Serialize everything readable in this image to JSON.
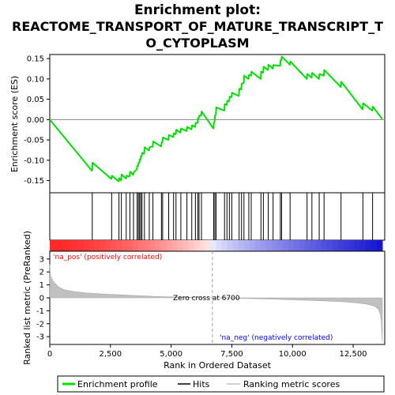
{
  "chart_data": {
    "type": "line",
    "title_line1": "Enrichment plot:",
    "title_line2": "REACTOME_TRANSPORT_OF_MATURE_TRANSCRIPT_T",
    "title_line3": "O_CYTOPLASM",
    "ylabel_top": "Enrichment score (ES)",
    "ylabel_bottom": "Ranked list metric (PreRanked)",
    "xlabel": "Rank in Ordered Dataset",
    "top_yticks": [
      "0.15",
      "0.10",
      "0.05",
      "0.00",
      "-0.05",
      "-0.10",
      "-0.15"
    ],
    "top_ytick_values": [
      0.15,
      0.1,
      0.05,
      0.0,
      -0.05,
      -0.1,
      -0.15
    ],
    "top_ylim": [
      -0.18,
      0.16
    ],
    "bottom_yticks": [
      "3",
      "2",
      "1",
      "0",
      "-1",
      "-2",
      "-3"
    ],
    "bottom_ytick_values": [
      3,
      2,
      1,
      0,
      -1,
      -2,
      -3
    ],
    "bottom_ylim": [
      -3.6,
      3.6
    ],
    "xticks": [
      "0",
      "2,500",
      "5,000",
      "7,500",
      "10,000",
      "12,500"
    ],
    "xtick_values": [
      0,
      2500,
      5000,
      7500,
      10000,
      12500
    ],
    "xlim": [
      0,
      13800
    ],
    "n_genes": 13700,
    "zero_cross_rank": 6700,
    "zero_cross_label": "Zero cross at 6700",
    "pos_label": "'na_pos' (positively correlated)",
    "neg_label": "'na_neg' (negatively correlated)",
    "legend": [
      "Enrichment profile",
      "Hits",
      "Ranking metric scores"
    ],
    "colors": {
      "profile": "#00e000",
      "hits": "#000000",
      "metric": "#c0c0c0",
      "zero_line": "#a0a0a0",
      "pos_text": "#ff0000",
      "neg_text": "#0000ff",
      "bar_pos": "#ff0000",
      "bar_neg": "#0000cc"
    },
    "hits": [
      1750,
      2550,
      2850,
      2950,
      3150,
      3300,
      3450,
      3600,
      3650,
      3700,
      3750,
      3800,
      3900,
      4100,
      4250,
      4600,
      4650,
      4900,
      5100,
      5200,
      5400,
      5650,
      5850,
      6000,
      6100,
      6150,
      6250,
      6750,
      6800,
      6850,
      7200,
      7300,
      7400,
      7500,
      7800,
      7900,
      8000,
      8200,
      8300,
      8700,
      8800,
      9000,
      9200,
      9500,
      9550,
      9900,
      10600,
      10800,
      11100,
      11300,
      12000,
      12900,
      13300
    ],
    "es_profile": [
      [
        0,
        0.0
      ],
      [
        1740,
        -0.126
      ],
      [
        1760,
        -0.106
      ],
      [
        2540,
        -0.146
      ],
      [
        2560,
        -0.138
      ],
      [
        2840,
        -0.152
      ],
      [
        2860,
        -0.144
      ],
      [
        2940,
        -0.15
      ],
      [
        2960,
        -0.135
      ],
      [
        3140,
        -0.145
      ],
      [
        3160,
        -0.138
      ],
      [
        3290,
        -0.14
      ],
      [
        3310,
        -0.128
      ],
      [
        3440,
        -0.136
      ],
      [
        3460,
        -0.13
      ],
      [
        3590,
        -0.122
      ],
      [
        3610,
        -0.114
      ],
      [
        3640,
        -0.114
      ],
      [
        3660,
        -0.106
      ],
      [
        3690,
        -0.106
      ],
      [
        3710,
        -0.098
      ],
      [
        3740,
        -0.098
      ],
      [
        3760,
        -0.09
      ],
      [
        3790,
        -0.09
      ],
      [
        3810,
        -0.082
      ],
      [
        3890,
        -0.084
      ],
      [
        3910,
        -0.068
      ],
      [
        4090,
        -0.076
      ],
      [
        4110,
        -0.068
      ],
      [
        4240,
        -0.067
      ],
      [
        4260,
        -0.054
      ],
      [
        4590,
        -0.066
      ],
      [
        4610,
        -0.056
      ],
      [
        4640,
        -0.056
      ],
      [
        4660,
        -0.044
      ],
      [
        4890,
        -0.05
      ],
      [
        4910,
        -0.038
      ],
      [
        5090,
        -0.043
      ],
      [
        5110,
        -0.034
      ],
      [
        5190,
        -0.036
      ],
      [
        5210,
        -0.025
      ],
      [
        5390,
        -0.032
      ],
      [
        5410,
        -0.022
      ],
      [
        5640,
        -0.028
      ],
      [
        5660,
        -0.018
      ],
      [
        5840,
        -0.024
      ],
      [
        5860,
        -0.014
      ],
      [
        5990,
        -0.018
      ],
      [
        6010,
        -0.008
      ],
      [
        6090,
        -0.008
      ],
      [
        6110,
        0.003
      ],
      [
        6140,
        0.003
      ],
      [
        6160,
        0.01
      ],
      [
        6240,
        0.01
      ],
      [
        6260,
        0.02
      ],
      [
        6740,
        -0.022
      ],
      [
        6760,
        -0.008
      ],
      [
        6790,
        -0.006
      ],
      [
        6810,
        0.01
      ],
      [
        6840,
        0.012
      ],
      [
        6860,
        0.03
      ],
      [
        7190,
        0.022
      ],
      [
        7210,
        0.038
      ],
      [
        7290,
        0.036
      ],
      [
        7310,
        0.046
      ],
      [
        7390,
        0.045
      ],
      [
        7410,
        0.056
      ],
      [
        7490,
        0.055
      ],
      [
        7510,
        0.066
      ],
      [
        7790,
        0.058
      ],
      [
        7810,
        0.076
      ],
      [
        7890,
        0.074
      ],
      [
        7910,
        0.088
      ],
      [
        7990,
        0.09
      ],
      [
        8010,
        0.108
      ],
      [
        8190,
        0.1
      ],
      [
        8210,
        0.11
      ],
      [
        8290,
        0.108
      ],
      [
        8310,
        0.118
      ],
      [
        8690,
        0.1
      ],
      [
        8710,
        0.118
      ],
      [
        8790,
        0.115
      ],
      [
        8810,
        0.13
      ],
      [
        8990,
        0.122
      ],
      [
        9010,
        0.135
      ],
      [
        9190,
        0.125
      ],
      [
        9210,
        0.134
      ],
      [
        9490,
        0.132
      ],
      [
        9510,
        0.146
      ],
      [
        9540,
        0.146
      ],
      [
        9560,
        0.155
      ],
      [
        9890,
        0.135
      ],
      [
        9910,
        0.143
      ],
      [
        10590,
        0.1
      ],
      [
        10610,
        0.112
      ],
      [
        10790,
        0.103
      ],
      [
        10810,
        0.115
      ],
      [
        11090,
        0.1
      ],
      [
        11110,
        0.112
      ],
      [
        11290,
        0.108
      ],
      [
        11310,
        0.122
      ],
      [
        11990,
        0.08
      ],
      [
        12010,
        0.093
      ],
      [
        12890,
        0.025
      ],
      [
        12910,
        0.04
      ],
      [
        13290,
        0.022
      ],
      [
        13310,
        0.032
      ],
      [
        13700,
        0.001
      ]
    ],
    "metric_curve": [
      [
        0,
        2.6
      ],
      [
        30,
        1.7
      ],
      [
        150,
        1.25
      ],
      [
        350,
        0.85
      ],
      [
        600,
        0.62
      ],
      [
        1000,
        0.48
      ],
      [
        1500,
        0.38
      ],
      [
        2500,
        0.26
      ],
      [
        3500,
        0.18
      ],
      [
        4500,
        0.1
      ],
      [
        5500,
        0.05
      ],
      [
        6700,
        0.0
      ],
      [
        8000,
        -0.05
      ],
      [
        9500,
        -0.12
      ],
      [
        10500,
        -0.18
      ],
      [
        11500,
        -0.25
      ],
      [
        12200,
        -0.32
      ],
      [
        12700,
        -0.4
      ],
      [
        13100,
        -0.5
      ],
      [
        13400,
        -0.65
      ],
      [
        13550,
        -0.9
      ],
      [
        13620,
        -1.3
      ],
      [
        13660,
        -1.8
      ],
      [
        13700,
        -3.4
      ]
    ]
  }
}
